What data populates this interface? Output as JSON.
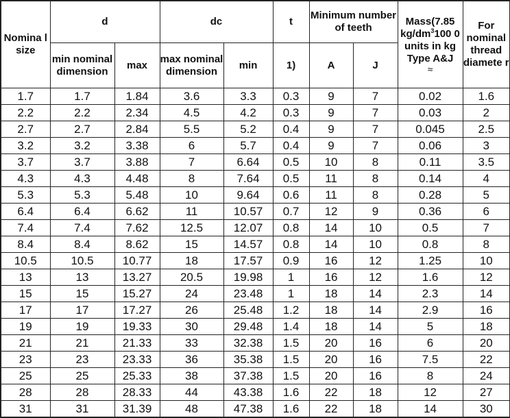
{
  "headers": {
    "nominal_size": "Nomina l size",
    "d": "d",
    "d_min": "min nominal dimension",
    "d_max": "max",
    "dc": "dc",
    "dc_max": "max nominal dimension",
    "dc_min": "min",
    "t": "t",
    "t_note": "1)",
    "teeth": "Minimum number of teeth",
    "teeth_a": "A",
    "teeth_j": "J",
    "mass_a": "Mass(7.85 kg/dm",
    "mass_sup": "3",
    "mass_b": "100 0 units in kg Type A&J",
    "mass_approx": "≈",
    "thread": "For nominal thread diamete r"
  },
  "rows": [
    [
      "1.7",
      "1.7",
      "1.84",
      "3.6",
      "3.3",
      "0.3",
      "9",
      "7",
      "0.02",
      "1.6"
    ],
    [
      "2.2",
      "2.2",
      "2.34",
      "4.5",
      "4.2",
      "0.3",
      "9",
      "7",
      "0.03",
      "2"
    ],
    [
      "2.7",
      "2.7",
      "2.84",
      "5.5",
      "5.2",
      "0.4",
      "9",
      "7",
      "0.045",
      "2.5"
    ],
    [
      "3.2",
      "3.2",
      "3.38",
      "6",
      "5.7",
      "0.4",
      "9",
      "7",
      "0.06",
      "3"
    ],
    [
      "3.7",
      "3.7",
      "3.88",
      "7",
      "6.64",
      "0.5",
      "10",
      "8",
      "0.11",
      "3.5"
    ],
    [
      "4.3",
      "4.3",
      "4.48",
      "8",
      "7.64",
      "0.5",
      "11",
      "8",
      "0.14",
      "4"
    ],
    [
      "5.3",
      "5.3",
      "5.48",
      "10",
      "9.64",
      "0.6",
      "11",
      "8",
      "0.28",
      "5"
    ],
    [
      "6.4",
      "6.4",
      "6.62",
      "11",
      "10.57",
      "0.7",
      "12",
      "9",
      "0.36",
      "6"
    ],
    [
      "7.4",
      "7.4",
      "7.62",
      "12.5",
      "12.07",
      "0.8",
      "14",
      "10",
      "0.5",
      "7"
    ],
    [
      "8.4",
      "8.4",
      "8.62",
      "15",
      "14.57",
      "0.8",
      "14",
      "10",
      "0.8",
      "8"
    ],
    [
      "10.5",
      "10.5",
      "10.77",
      "18",
      "17.57",
      "0.9",
      "16",
      "12",
      "1.25",
      "10"
    ],
    [
      "13",
      "13",
      "13.27",
      "20.5",
      "19.98",
      "1",
      "16",
      "12",
      "1.6",
      "12"
    ],
    [
      "15",
      "15",
      "15.27",
      "24",
      "23.48",
      "1",
      "18",
      "14",
      "2.3",
      "14"
    ],
    [
      "17",
      "17",
      "17.27",
      "26",
      "25.48",
      "1.2",
      "18",
      "14",
      "2.9",
      "16"
    ],
    [
      "19",
      "19",
      "19.33",
      "30",
      "29.48",
      "1.4",
      "18",
      "14",
      "5",
      "18"
    ],
    [
      "21",
      "21",
      "21.33",
      "33",
      "32.38",
      "1.5",
      "20",
      "16",
      "6",
      "20"
    ],
    [
      "23",
      "23",
      "23.33",
      "36",
      "35.38",
      "1.5",
      "20",
      "16",
      "7.5",
      "22"
    ],
    [
      "25",
      "25",
      "25.33",
      "38",
      "37.38",
      "1.5",
      "20",
      "16",
      "8",
      "24"
    ],
    [
      "28",
      "28",
      "28.33",
      "44",
      "43.38",
      "1.6",
      "22",
      "18",
      "12",
      "27"
    ],
    [
      "31",
      "31",
      "31.39",
      "48",
      "47.38",
      "1.6",
      "22",
      "18",
      "14",
      "30"
    ]
  ]
}
